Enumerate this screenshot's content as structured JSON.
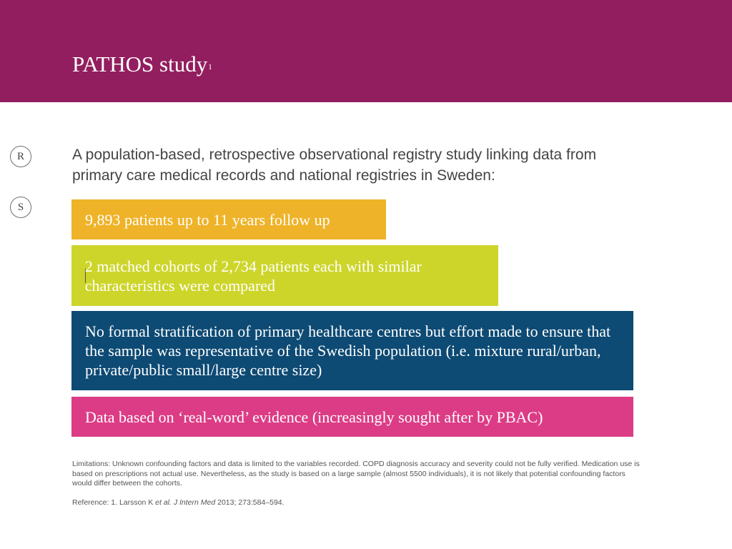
{
  "header": {
    "title": "PATHOS study",
    "title_superscript": "1",
    "background_color": "#921e5f"
  },
  "markers": [
    "R",
    "S"
  ],
  "intro": "A population-based, retrospective observational registry study linking data from primary care medical records and national registries in Sweden:",
  "boxes": [
    {
      "text": "9,893 patients up to 11 years follow up",
      "color": "#efb329"
    },
    {
      "text": "2 matched cohorts of 2,734 patients each with similar characteristics were compared",
      "color": "#cdd52a"
    },
    {
      "text": "No formal stratification of primary healthcare centres but effort made to ensure that the sample was representative of the Swedish population (i.e. mixture rural/urban, private/public small/large centre size)",
      "color": "#0d4a74"
    },
    {
      "text": "Data based on ‘real-word’ evidence (increasingly sought after by PBAC)",
      "color": "#dc3c86"
    }
  ],
  "limitations": "Limitations: Unknown confounding factors and data is limited to the variables recorded. COPD diagnosis accuracy and severity could not be fully verified. Medication use is based on prescriptions not actual use. Nevertheless, as the study is based on a large sample (almost 5500 individuals), it is not likely that potential confounding factors would differ between the cohorts.",
  "reference": {
    "prefix": "Reference: 1. Larsson K ",
    "italic_part": "et al. J Intern Med",
    "suffix": " 2013; 273:584–594."
  }
}
